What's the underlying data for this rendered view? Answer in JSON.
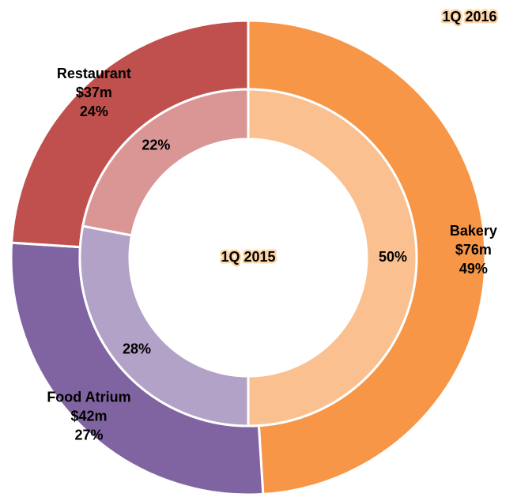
{
  "chart_data": {
    "type": "donut",
    "categories": [
      "Bakery",
      "Food Atrium",
      "Restaurant"
    ],
    "amounts": [
      76,
      42,
      37
    ],
    "amount_labels": [
      "$76m",
      "$42m",
      "$37m"
    ],
    "series": [
      {
        "name": "1Q 2016",
        "colors": [
          "#f79646",
          "#8064a2",
          "#c0504d"
        ],
        "values": [
          49,
          27,
          24
        ],
        "value_labels": [
          "49%",
          "27%",
          "24%"
        ]
      },
      {
        "name": "1Q 2015",
        "colors": [
          "#fac090",
          "#b2a2c7",
          "#d99694"
        ],
        "values": [
          50,
          28,
          22
        ],
        "value_labels": [
          "50%",
          "28%",
          "22%"
        ]
      }
    ]
  }
}
